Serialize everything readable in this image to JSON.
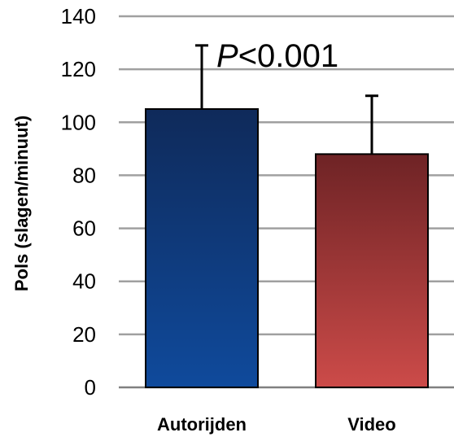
{
  "chart_data": {
    "type": "bar",
    "categories": [
      "Autorijden",
      "Video"
    ],
    "values": [
      105,
      88
    ],
    "error_upper": [
      129,
      110
    ],
    "ylabel": "Pols (slagen/minuut)",
    "xlabel": "",
    "ylim": [
      0,
      140
    ],
    "yticks": [
      0,
      20,
      40,
      60,
      80,
      100,
      120,
      140
    ],
    "grid": true,
    "annotation": {
      "italic": "P",
      "rest": "<0.001"
    },
    "colors": {
      "bar_1_top": "#0f2a5a",
      "bar_1_bottom": "#0f4a9c",
      "bar_2_top": "#6e2325",
      "bar_2_bottom": "#cc4b49",
      "grid": "#a0a0a0"
    }
  }
}
